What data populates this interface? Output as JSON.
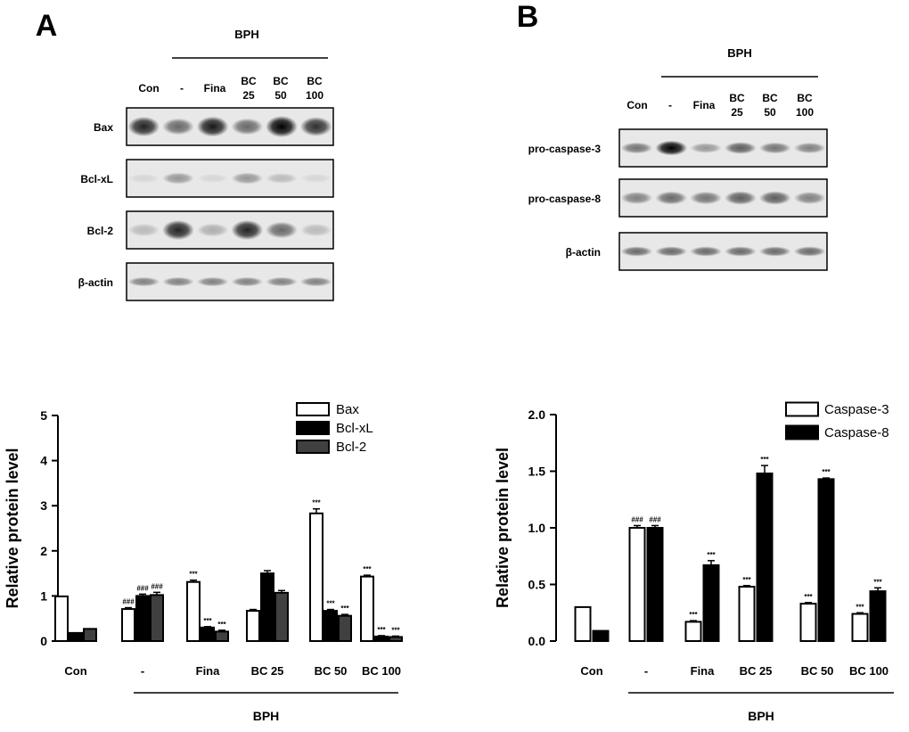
{
  "panels": [
    {
      "letter": "A",
      "blot": {
        "group_label": "BPH",
        "lanes": [
          "Con",
          "-",
          "Fina",
          "BC\n25",
          "BC\n50",
          "BC\n100"
        ],
        "rows": [
          "Bax",
          "Bcl-xL",
          "Bcl-2",
          "β-actin"
        ],
        "band_intensity": [
          [
            0.85,
            0.55,
            0.9,
            0.55,
            1.0,
            0.8
          ],
          [
            0.05,
            0.35,
            0.05,
            0.35,
            0.2,
            0.05
          ],
          [
            0.2,
            0.85,
            0.25,
            0.85,
            0.55,
            0.2
          ],
          [
            0.45,
            0.45,
            0.45,
            0.45,
            0.45,
            0.45
          ]
        ]
      }
    },
    {
      "letter": "B",
      "blot": {
        "group_label": "BPH",
        "lanes": [
          "Con",
          "-",
          "Fina",
          "BC\n25",
          "BC\n50",
          "BC\n100"
        ],
        "rows": [
          "pro-caspase-3",
          "pro-caspase-8",
          "β-actin"
        ],
        "band_intensity": [
          [
            0.5,
            1.0,
            0.35,
            0.6,
            0.5,
            0.45
          ],
          [
            0.45,
            0.55,
            0.5,
            0.6,
            0.6,
            0.45
          ],
          [
            0.55,
            0.55,
            0.55,
            0.55,
            0.55,
            0.55
          ]
        ]
      }
    }
  ],
  "chart_data": [
    {
      "type": "bar",
      "ylabel": "Relative protein level",
      "ylim": [
        0,
        5
      ],
      "yticks": [
        "0",
        "1",
        "2",
        "3",
        "4",
        "5"
      ],
      "categories": [
        "Con",
        "-",
        "Fina",
        "BC  25",
        "BC  50",
        "BC  100"
      ],
      "group_label": "BPH",
      "legend_position": "top-right",
      "series": [
        {
          "name": "Bax",
          "color": "#ffffff",
          "values": [
            0.99,
            0.71,
            1.31,
            0.67,
            2.83,
            1.43
          ],
          "errors": [
            0.0,
            0.03,
            0.04,
            0.03,
            0.1,
            0.03
          ],
          "annotations": [
            "",
            "###",
            "***",
            "",
            "***",
            "***"
          ]
        },
        {
          "name": "Bcl-xL",
          "color": "#000000",
          "values": [
            0.18,
            1.0,
            0.3,
            1.5,
            0.67,
            0.1
          ],
          "errors": [
            0.0,
            0.04,
            0.02,
            0.06,
            0.03,
            0.02
          ],
          "annotations": [
            "",
            "###",
            "***",
            "",
            "***",
            "***"
          ]
        },
        {
          "name": "Bcl-2",
          "color": "#404040",
          "values": [
            0.27,
            1.02,
            0.21,
            1.07,
            0.56,
            0.09
          ],
          "errors": [
            0.0,
            0.06,
            0.03,
            0.05,
            0.03,
            0.02
          ],
          "annotations": [
            "",
            "###",
            "***",
            "",
            "***",
            "***"
          ]
        }
      ]
    },
    {
      "type": "bar",
      "ylabel": "Relative protein level",
      "ylim": [
        0,
        2.0
      ],
      "yticks": [
        "0.0",
        "0.5",
        "1.0",
        "1.5",
        "2.0"
      ],
      "categories": [
        "Con",
        "-",
        "Fina",
        "BC  25",
        "BC  50",
        "BC  100"
      ],
      "group_label": "BPH",
      "legend_position": "top-right",
      "series": [
        {
          "name": "Caspase-3",
          "color": "#ffffff",
          "values": [
            0.3,
            1.0,
            0.17,
            0.48,
            0.33,
            0.24
          ],
          "errors": [
            0.0,
            0.02,
            0.01,
            0.01,
            0.01,
            0.01
          ],
          "annotations": [
            "",
            "###",
            "***",
            "***",
            "***",
            "***"
          ]
        },
        {
          "name": "Caspase-8",
          "color": "#000000",
          "values": [
            0.09,
            1.0,
            0.67,
            1.48,
            1.43,
            0.44
          ],
          "errors": [
            0.0,
            0.02,
            0.04,
            0.07,
            0.01,
            0.03
          ],
          "annotations": [
            "",
            "###",
            "***",
            "***",
            "***",
            "***"
          ]
        }
      ]
    }
  ]
}
